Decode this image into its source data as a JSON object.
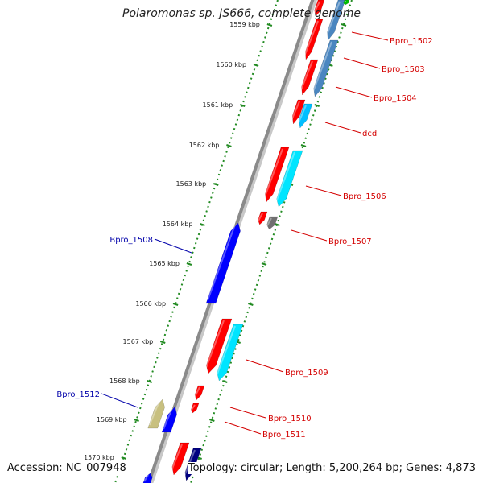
{
  "title": "Polaromonas sp. JS666, complete genome",
  "footer": {
    "accession": "Accession: NC_007948",
    "summary": "Topology: circular; Length: 5,200,264 bp; Genes: 4,873"
  },
  "ruler": {
    "unit": "kbp",
    "ticks": [
      "1559 kbp",
      "1560 kbp",
      "1561 kbp",
      "1562 kbp",
      "1563 kbp",
      "1564 kbp",
      "1565 kbp",
      "1566 kbp",
      "1567 kbp",
      "1568 kbp",
      "1569 kbp",
      "1570 kbp"
    ]
  },
  "colors": {
    "backbone": "#8a8a8a",
    "ruler": "#228b22",
    "forward_label": "#d40000",
    "reverse_label": "#0000aa",
    "red": "#ff0000",
    "blue": "#0000ff",
    "cyan": "#00e5ff",
    "skyblue": "#00bfff",
    "steelblue": "#4a86c0",
    "navy": "#000080",
    "khaki": "#c8c080",
    "gray": "#707070",
    "green": "#00c000"
  },
  "labels": [
    {
      "text": "Bpro_1502",
      "strand": "forward"
    },
    {
      "text": "Bpro_1503",
      "strand": "forward"
    },
    {
      "text": "Bpro_1504",
      "strand": "forward"
    },
    {
      "text": "dcd",
      "strand": "forward"
    },
    {
      "text": "Bpro_1506",
      "strand": "forward"
    },
    {
      "text": "Bpro_1507",
      "strand": "forward"
    },
    {
      "text": "Bpro_1508",
      "strand": "reverse"
    },
    {
      "text": "Bpro_1509",
      "strand": "forward"
    },
    {
      "text": "Bpro_1510",
      "strand": "forward"
    },
    {
      "text": "Bpro_1511",
      "strand": "forward"
    },
    {
      "text": "Bpro_1512",
      "strand": "reverse"
    }
  ]
}
